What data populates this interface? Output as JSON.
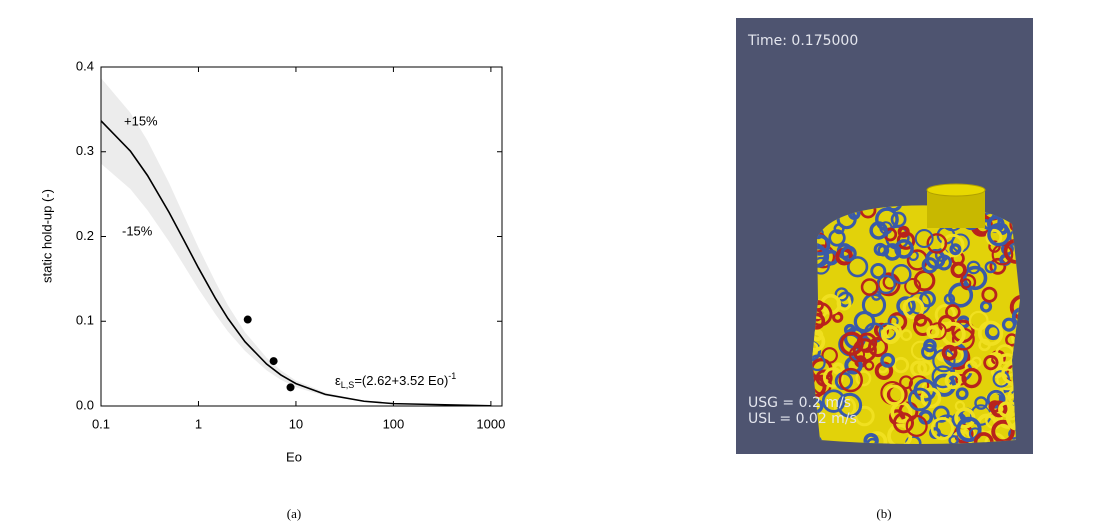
{
  "chart_data": {
    "type": "line",
    "x_label": "Eo",
    "y_label": "static hold-up (-)",
    "xscale": "log",
    "xlim": [
      0.1,
      1300
    ],
    "xticks": [
      0.1,
      1,
      10,
      100,
      1000
    ],
    "ylim": [
      0,
      0.4
    ],
    "yticks": [
      {
        "value": 0,
        "label": "0.0"
      },
      0.1,
      0.2,
      0.3,
      0.4
    ],
    "x": [
      0.1,
      0.2,
      0.3,
      0.5,
      0.7,
      1,
      1.5,
      2,
      3,
      5,
      7,
      10,
      20,
      50,
      100,
      1000
    ],
    "series": [
      {
        "color": "#000000",
        "values": [
          0.3365,
          0.3008,
          0.272,
          0.2283,
          0.1967,
          0.1629,
          0.1266,
          0.1035,
          0.0759,
          0.0495,
          0.0367,
          0.0264,
          0.0137,
          0.0056,
          0.0028,
          0.0003
        ]
      }
    ],
    "band": {
      "color": "#ececec",
      "upper_label": "+15%",
      "lower_label": "-15%",
      "upper": [
        0.387,
        0.346,
        0.313,
        0.263,
        0.226,
        0.187,
        0.146,
        0.119,
        0.087,
        0.057,
        0.042,
        0.03,
        0.016,
        0.006,
        0.003,
        0.0003
      ],
      "lower": [
        0.286,
        0.256,
        0.231,
        0.194,
        0.167,
        0.138,
        0.108,
        0.088,
        0.065,
        0.042,
        0.031,
        0.022,
        0.012,
        0.005,
        0.002,
        0.0003
      ]
    },
    "points": {
      "color": "#000000",
      "x": [
        3.2,
        5.9,
        8.8
      ],
      "values": [
        0.102,
        0.053,
        0.022
      ]
    },
    "formula": {
      "symbol": "ε",
      "subscript": "L,S",
      "body": "=(2.62+3.52 Eo)",
      "superscript": "-1"
    }
  },
  "panel_b": {
    "time": "Time: 0.175000",
    "usg": "USG = 0.2 m/s",
    "usl": "USL = 0.02 m/s"
  },
  "captions": [
    "(a)",
    "(b)"
  ]
}
